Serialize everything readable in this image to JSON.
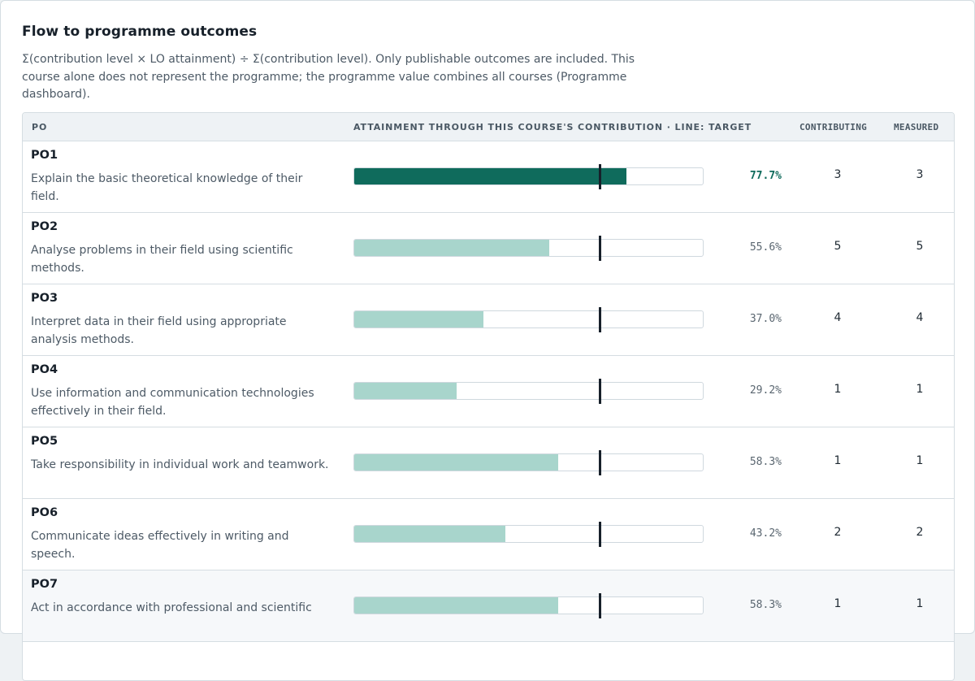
{
  "header": {
    "title": "Flow to programme outcomes",
    "description": "Σ(contribution level × LO attainment) ÷ Σ(contribution level). Only publishable outcomes are included. This course alone does not represent the programme; the programme value combines all courses (Programme dashboard)."
  },
  "table": {
    "columns": {
      "po": "PO",
      "attainment": "ATTAINMENT THROUGH THIS COURSE'S CONTRIBUTION · LINE: TARGET",
      "contributing": "CONTRIBUTING",
      "measured": "MEASURED"
    },
    "target_fraction": 0.7,
    "rows": [
      {
        "code": "PO1",
        "text": "Explain the basic theoretical knowledge of their field.",
        "pct": "77.7%",
        "value": 0.777,
        "contributing": "3",
        "measured": "3",
        "highlight": true
      },
      {
        "code": "PO2",
        "text": "Analyse problems in their field using scientific methods.",
        "pct": "55.6%",
        "value": 0.556,
        "contributing": "5",
        "measured": "5",
        "highlight": false
      },
      {
        "code": "PO3",
        "text": "Interpret data in their field using appropriate analysis methods.",
        "pct": "37.0%",
        "value": 0.37,
        "contributing": "4",
        "measured": "4",
        "highlight": false
      },
      {
        "code": "PO4",
        "text": "Use information and communication technologies effectively in their field.",
        "pct": "29.2%",
        "value": 0.292,
        "contributing": "1",
        "measured": "1",
        "highlight": false
      },
      {
        "code": "PO5",
        "text": "Take responsibility in individual work and teamwork.",
        "pct": "58.3%",
        "value": 0.583,
        "contributing": "1",
        "measured": "1",
        "highlight": false
      },
      {
        "code": "PO6",
        "text": "Communicate ideas effectively in writing and speech.",
        "pct": "43.2%",
        "value": 0.432,
        "contributing": "2",
        "measured": "2",
        "highlight": false
      },
      {
        "code": "PO7",
        "text": "Act in accordance with professional and scientific",
        "pct": "58.3%",
        "value": 0.583,
        "contributing": "1",
        "measured": "1",
        "highlight": false
      }
    ]
  },
  "colors": {
    "strong_fill": "#0f6b5c",
    "light_fill": "#a8d5cc",
    "target_line": "#17202a"
  }
}
